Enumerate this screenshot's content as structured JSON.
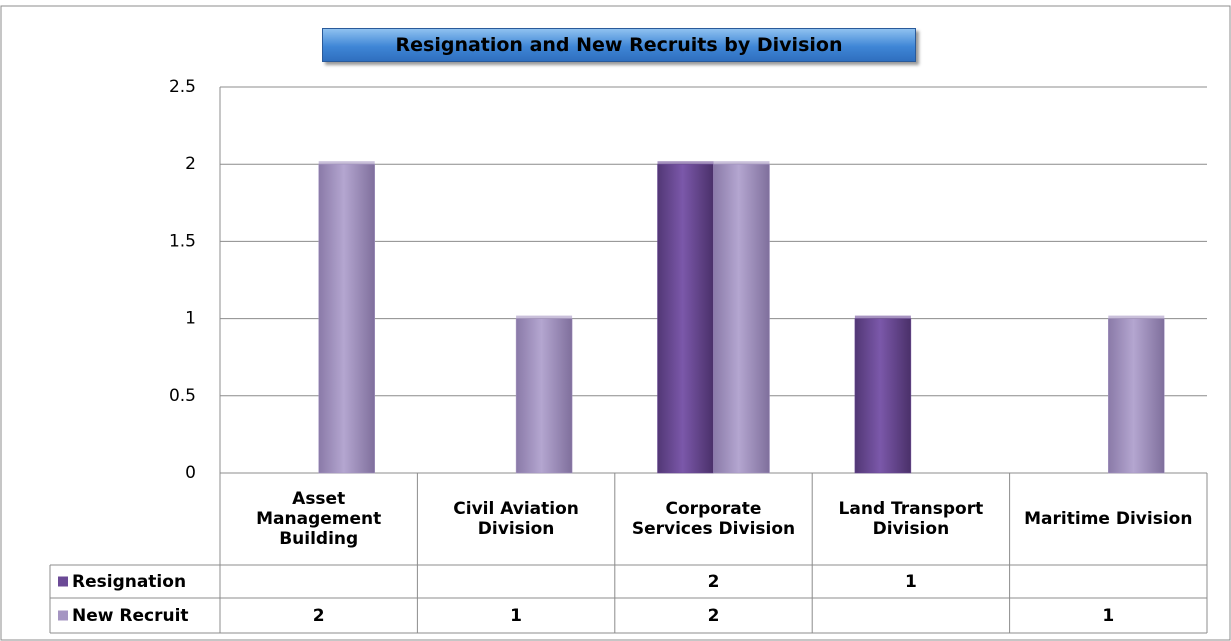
{
  "chart_data": {
    "type": "bar",
    "title": "Resignation and New Recruits by Division",
    "categories": [
      "Asset Management Building",
      "Civil Aviation Division",
      "Corporate Services Division",
      "Land Transport Division",
      "Maritime Division"
    ],
    "series": [
      {
        "name": "Resignation",
        "color": "#6b4a96",
        "values": [
          null,
          null,
          2,
          1,
          null
        ]
      },
      {
        "name": "New Recruit",
        "color": "#a595c2",
        "values": [
          2,
          1,
          2,
          null,
          1
        ]
      }
    ],
    "ylim": [
      0,
      2.5
    ],
    "yticks": [
      0,
      0.5,
      1,
      1.5,
      2,
      2.5
    ],
    "grid": true,
    "data_table": true
  }
}
